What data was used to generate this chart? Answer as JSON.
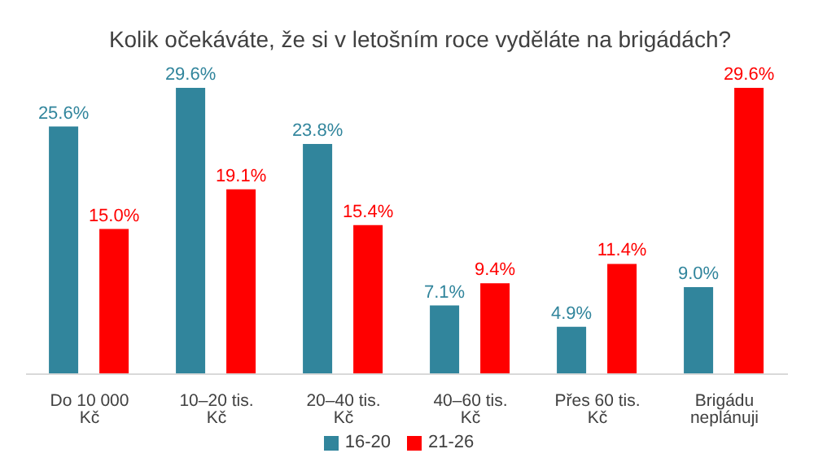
{
  "chart_data": {
    "type": "bar",
    "title": "Kolik očekáváte, že si v letošním roce vyděláte na brigádách?",
    "categories": [
      "Do 10 000 Kč",
      "10–20 tis. Kč",
      "20–40 tis. Kč",
      "40–60 tis. Kč",
      "Přes 60 tis. Kč",
      "Brigádu neplánuji"
    ],
    "series": [
      {
        "name": "16-20",
        "color": "#31859c",
        "values": [
          25.6,
          29.6,
          23.8,
          7.1,
          4.9,
          9.0
        ],
        "value_labels": [
          "25.6%",
          "29.6%",
          "23.8%",
          "7.1%",
          "4.9%",
          "9.0%"
        ]
      },
      {
        "name": "21-26",
        "color": "#ff0000",
        "values": [
          15.0,
          19.1,
          15.4,
          9.4,
          11.4,
          29.6
        ],
        "value_labels": [
          "15.0%",
          "19.1%",
          "15.4%",
          "9.4%",
          "11.4%",
          "29.6%"
        ]
      }
    ],
    "legend": "bottom",
    "grid": false
  }
}
